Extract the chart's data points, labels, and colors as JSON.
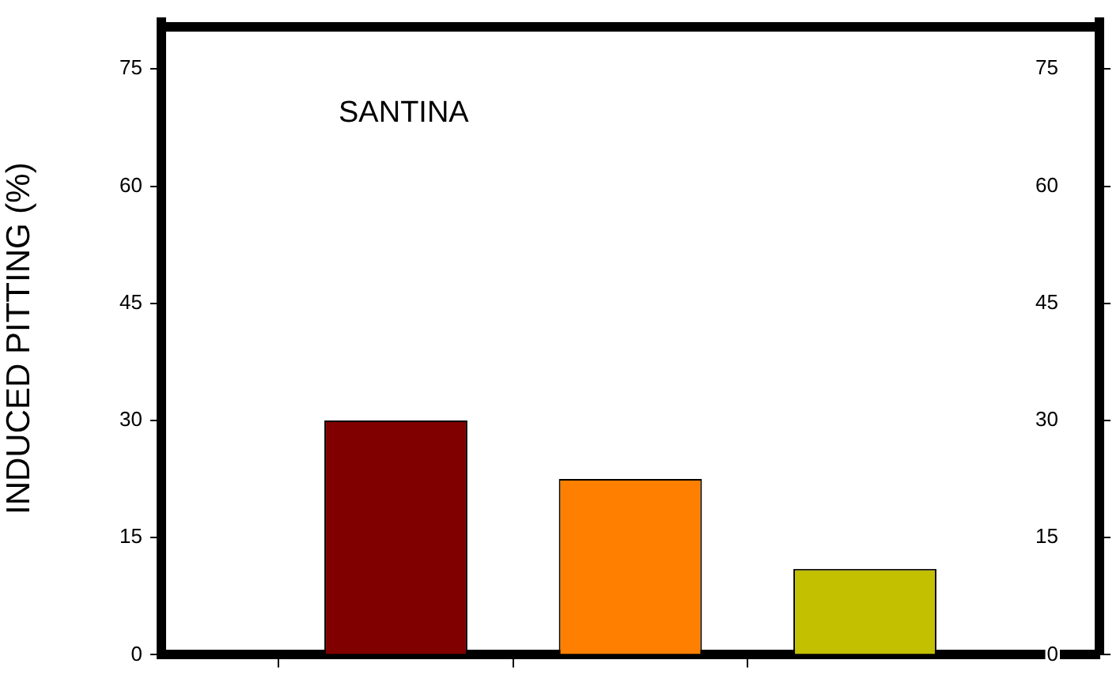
{
  "chart_data": {
    "type": "bar",
    "ylabel": "INDUCED PITTING (%)",
    "annotations": [
      "SANTINA"
    ],
    "categories": [
      null,
      null,
      null,
      null,
      null
    ],
    "values": [
      null,
      30,
      22.5,
      11,
      null
    ],
    "colors": [
      "#800000",
      "#800000",
      "#ff8000",
      "#c3c000",
      "#800000"
    ],
    "ylim": [
      0,
      81
    ],
    "yticks": [
      0,
      15,
      30,
      45,
      60,
      75
    ],
    "y2lim": [
      0,
      81
    ],
    "y2ticks": [
      0,
      15,
      30,
      45,
      60,
      75
    ],
    "tick_labels": "y",
    "grid": false,
    "legend": false
  }
}
